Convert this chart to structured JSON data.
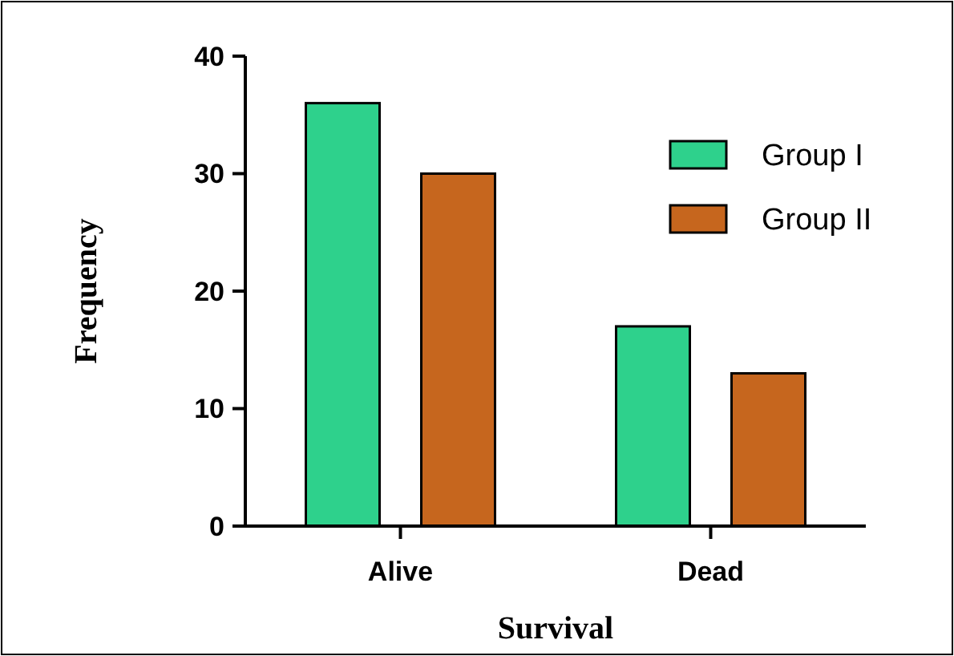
{
  "chart_data": {
    "type": "bar",
    "xlabel": "Survival",
    "ylabel": "Frequency",
    "categories": [
      "Alive",
      "Dead"
    ],
    "series": [
      {
        "name": "Group I",
        "color": "#2ed18c",
        "values": [
          36,
          17
        ]
      },
      {
        "name": "Group II",
        "color": "#c6661e",
        "values": [
          30,
          13
        ]
      }
    ],
    "ylim": [
      0,
      40
    ],
    "yticks": [
      0,
      10,
      20,
      30,
      40
    ],
    "grid": false,
    "legend": "top right"
  }
}
